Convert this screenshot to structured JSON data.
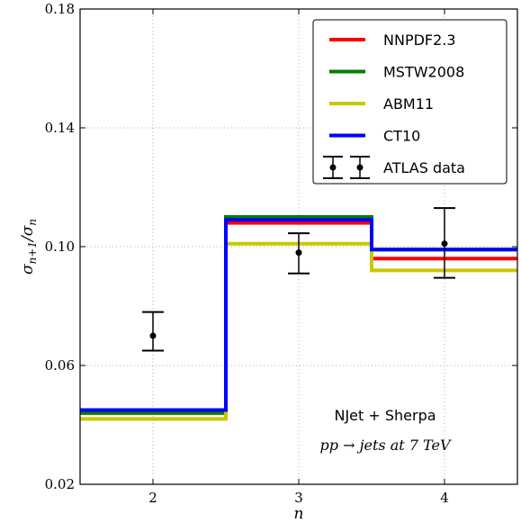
{
  "chart_data": {
    "type": "line",
    "step": true,
    "xlabel": "n",
    "ylabel": "σn+1/σn",
    "xlim": [
      1.5,
      4.5
    ],
    "ylim": [
      0.02,
      0.18
    ],
    "xticks": [
      2,
      3,
      4
    ],
    "yticks": [
      0.02,
      0.06,
      0.1,
      0.14,
      0.18
    ],
    "ytick_labels": [
      "0.02",
      "0.06",
      "0.10",
      "0.14",
      "0.18"
    ],
    "grid": true,
    "legend_position": "top-right",
    "series": [
      {
        "name": "NNPDF2.3",
        "color": "#ff0000",
        "values": [
          0.044,
          0.108,
          0.096
        ]
      },
      {
        "name": "MSTW2008",
        "color": "#007f00",
        "values": [
          0.044,
          0.11,
          0.099
        ]
      },
      {
        "name": "ABM11",
        "color": "#c8c800",
        "values": [
          0.042,
          0.101,
          0.092
        ]
      },
      {
        "name": "CT10",
        "color": "#0000ff",
        "values": [
          0.045,
          0.109,
          0.099
        ]
      }
    ],
    "data_points": {
      "name": "ATLAS data",
      "x": [
        2,
        3,
        4
      ],
      "y": [
        0.07,
        0.098,
        0.101
      ],
      "yerr_low": [
        0.065,
        0.091,
        0.0895
      ],
      "yerr_high": [
        0.078,
        0.1045,
        0.113
      ]
    },
    "annotations": [
      "NJet + Sherpa",
      "pp → jets at 7 TeV"
    ]
  }
}
